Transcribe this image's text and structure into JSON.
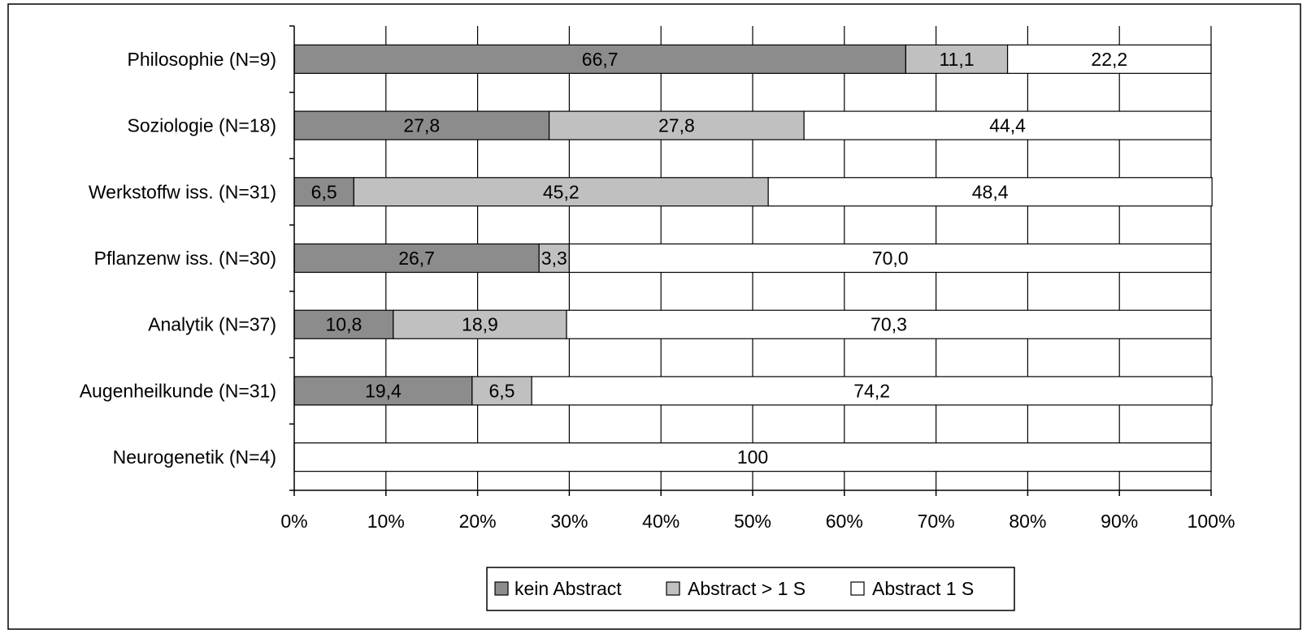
{
  "chart_data": {
    "type": "bar",
    "orientation": "horizontal",
    "stacked": true,
    "normalized": true,
    "title": "",
    "xlabel": "",
    "ylabel": "",
    "xlim": [
      0,
      100
    ],
    "grid": true,
    "legend_position": "bottom",
    "categories": [
      "Philosophie (N=9)",
      "Soziologie (N=18)",
      "Werkstoffw iss. (N=31)",
      "Pflanzenw iss. (N=30)",
      "Analytik (N=37)",
      "Augenheilkunde (N=31)",
      "Neurogenetik (N=4)"
    ],
    "series": [
      {
        "name": "kein Abstract",
        "color": "#8c8c8c",
        "values": [
          66.7,
          27.8,
          6.5,
          26.7,
          10.8,
          19.4,
          0
        ],
        "labels": [
          "66,7",
          "27,8",
          "6,5",
          "26,7",
          "10,8",
          "19,4",
          ""
        ]
      },
      {
        "name": "Abstract > 1 S",
        "color": "#c0c0c0",
        "values": [
          11.1,
          27.8,
          45.2,
          3.3,
          18.9,
          6.5,
          0
        ],
        "labels": [
          "11,1",
          "27,8",
          "45,2",
          "3,3",
          "18,9",
          "6,5",
          ""
        ]
      },
      {
        "name": "Abstract 1 S",
        "color": "#ffffff",
        "values": [
          22.2,
          44.4,
          48.4,
          70.0,
          70.3,
          74.2,
          100
        ],
        "labels": [
          "22,2",
          "44,4",
          "48,4",
          "70,0",
          "70,3",
          "74,2",
          "100"
        ]
      }
    ],
    "x_ticks": [
      "0%",
      "10%",
      "20%",
      "30%",
      "40%",
      "50%",
      "60%",
      "70%",
      "80%",
      "90%",
      "100%"
    ]
  }
}
